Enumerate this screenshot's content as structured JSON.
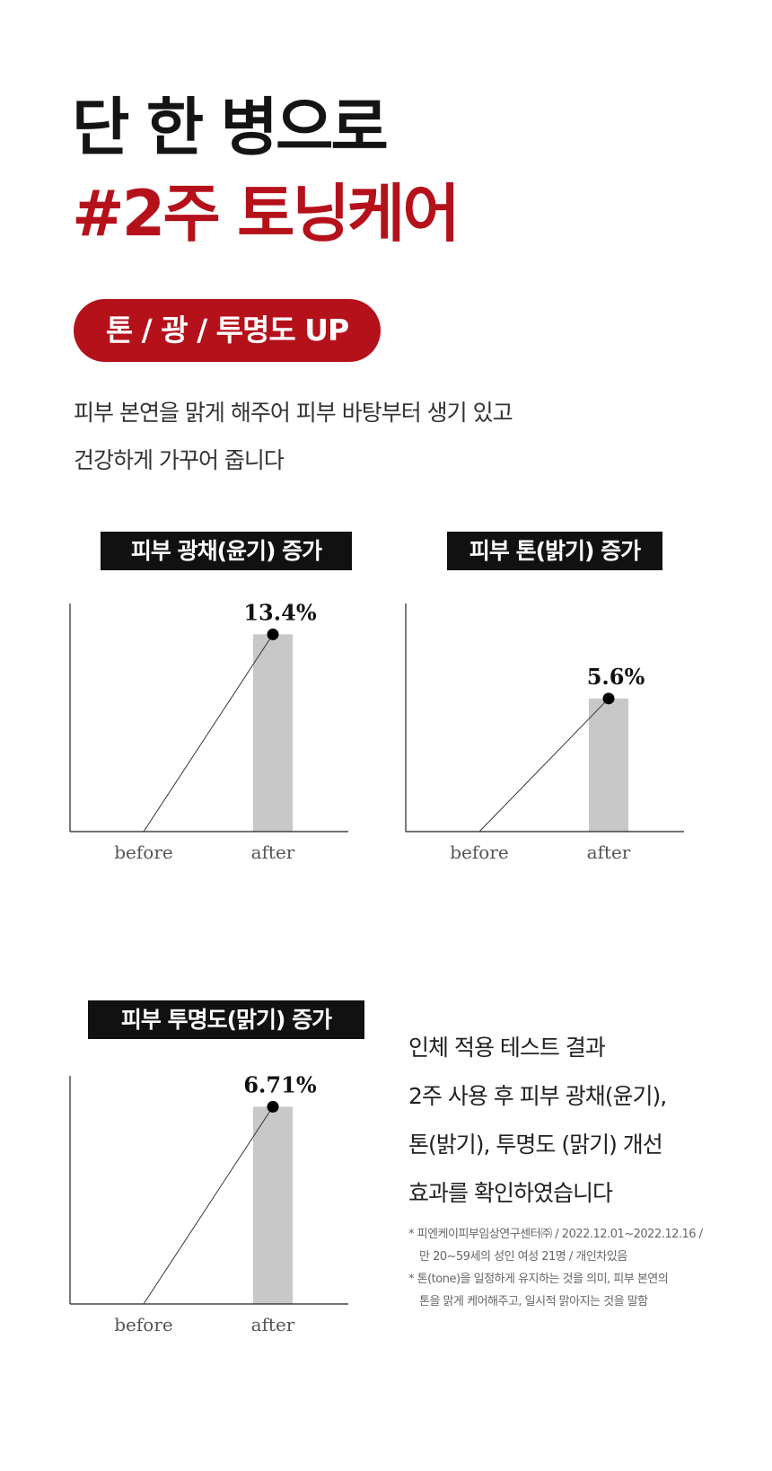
{
  "headline": {
    "line1": "단 한 병으로",
    "line2": "#2주 토닝케어"
  },
  "badge": {
    "text": "톤 / 광 / 투명도 UP"
  },
  "intro": {
    "line1": "피부 본연을 맑게 해주어 피부 바탕부터 생기 있고",
    "line2": "건강하게 가꾸어 줍니다"
  },
  "colors": {
    "accent": "#b5111b",
    "bar": "#c8c8c8",
    "label_bg": "#111111"
  },
  "chart_data": [
    {
      "type": "bar",
      "title": "피부 광채(윤기) 증가",
      "categories": [
        "before",
        "after"
      ],
      "values": [
        0,
        13.4
      ],
      "value_label": "13.4%",
      "ylim": [
        0,
        15.5
      ]
    },
    {
      "type": "bar",
      "title": "피부 톤(밝기) 증가",
      "categories": [
        "before",
        "after"
      ],
      "values": [
        0,
        5.6
      ],
      "value_label": "5.6%",
      "ylim": [
        0,
        9.6
      ]
    },
    {
      "type": "bar",
      "title": "피부 투명도(맑기) 증가",
      "categories": [
        "before",
        "after"
      ],
      "values": [
        0,
        6.71
      ],
      "value_label": "6.71%",
      "ylim": [
        0,
        7.76
      ]
    }
  ],
  "summary": {
    "lines": [
      "인체 적용 테스트 결과",
      "2주 사용 후 피부 광채(윤기),",
      "톤(밝기), 투명도 (맑기) 개선",
      "효과를 확인하였습니다"
    ]
  },
  "footnotes": {
    "note1_line1": "* 피엔케이피부임상연구센터㈜ / 2022.12.01~2022.12.16 /",
    "note1_line2": "만 20~59세의 성인 여성 21명 / 개인차있음",
    "note2_line1": "* 톤(tone)을 일정하게 유지하는 것을 의미, 피부 본연의",
    "note2_line2": "톤을 맑게 케어해주고, 일시적 맑아지는 것을 말함"
  }
}
